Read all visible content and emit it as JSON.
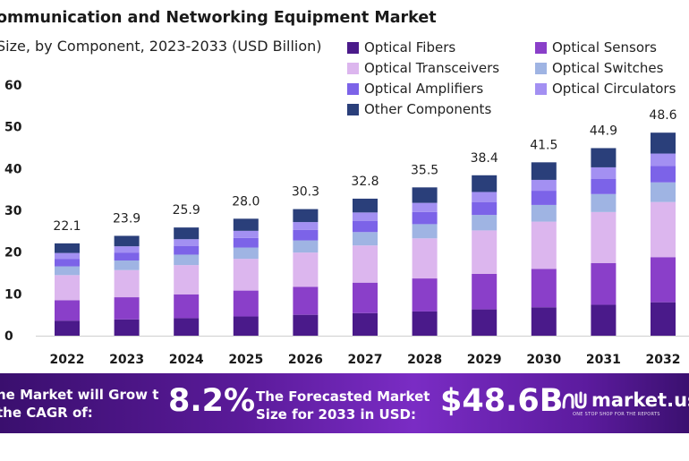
{
  "chart_data": {
    "type": "bar",
    "stacked": true,
    "title": "ommunication and Networking Equipment Market",
    "subtitle": "Size, by Component, 2023-2033 (USD Billion)",
    "categories": [
      "2022",
      "2023",
      "2024",
      "2025",
      "2026",
      "2027",
      "2028",
      "2029",
      "2030",
      "2031",
      "2032"
    ],
    "totals": [
      22.1,
      23.9,
      25.9,
      28.0,
      30.3,
      32.8,
      35.5,
      38.4,
      41.5,
      44.9,
      48.6
    ],
    "total_labels": [
      "22.1",
      "23.9",
      "25.9",
      "28.0",
      "30.3",
      "32.8",
      "35.5",
      "38.4",
      "41.5",
      "44.9",
      "48.6"
    ],
    "ylim": [
      0,
      60
    ],
    "yticks": [
      "0",
      "10",
      "20",
      "30",
      "40",
      "50",
      "60"
    ],
    "grid": false,
    "legend_position": "top-right",
    "series": [
      {
        "name": "Optical Fibers",
        "color": "#4a1a8a",
        "values": [
          3.6,
          3.9,
          4.2,
          4.6,
          5.0,
          5.4,
          5.8,
          6.3,
          6.8,
          7.4,
          8.0
        ]
      },
      {
        "name": "Optical Sensors",
        "color": "#8a3fc9",
        "values": [
          4.9,
          5.3,
          5.7,
          6.2,
          6.7,
          7.3,
          7.9,
          8.5,
          9.2,
          10.0,
          10.8
        ]
      },
      {
        "name": "Optical Transceivers",
        "color": "#dcb6ee",
        "values": [
          6.0,
          6.5,
          7.0,
          7.6,
          8.2,
          8.9,
          9.6,
          10.4,
          11.3,
          12.2,
          13.2
        ]
      },
      {
        "name": "Optical Switches",
        "color": "#9fb4e3",
        "values": [
          2.1,
          2.3,
          2.5,
          2.7,
          2.9,
          3.2,
          3.4,
          3.7,
          4.0,
          4.3,
          4.7
        ]
      },
      {
        "name": "Optical Amplifiers",
        "color": "#7c63e8",
        "values": [
          1.8,
          1.9,
          2.1,
          2.3,
          2.5,
          2.7,
          2.9,
          3.1,
          3.4,
          3.6,
          3.9
        ]
      },
      {
        "name": "Optical Circulators",
        "color": "#a390f2",
        "values": [
          1.4,
          1.5,
          1.6,
          1.7,
          1.9,
          2.0,
          2.2,
          2.4,
          2.6,
          2.8,
          3.0
        ]
      },
      {
        "name": "Other Components",
        "color": "#2a3f7a",
        "values": [
          2.3,
          2.5,
          2.8,
          2.9,
          3.1,
          3.3,
          3.7,
          4.0,
          4.2,
          4.6,
          5.0
        ]
      }
    ]
  },
  "banner": {
    "text1": "he Market will Grow t the CAGR of:",
    "cagr": "8.2%",
    "text2": "The Forecasted Market Size for 2033 in USD:",
    "value": "$48.6B",
    "logo": "market.us",
    "tagline": "ONE STOP SHOP FOR THE REPORTS"
  }
}
